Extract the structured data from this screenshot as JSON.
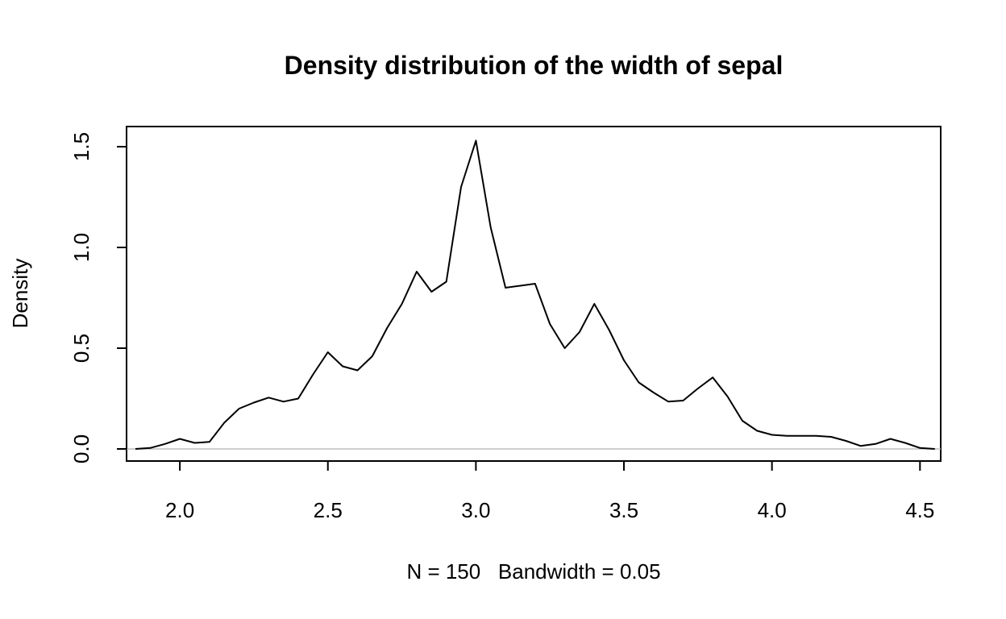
{
  "chart_data": {
    "type": "line",
    "title": "Density distribution of the width of sepal",
    "xlabel": "N = 150   Bandwidth = 0.05",
    "ylabel": "Density",
    "xlim": [
      1.82,
      4.57
    ],
    "ylim": [
      -0.06,
      1.6
    ],
    "x_ticks": [
      "2.0",
      "2.5",
      "3.0",
      "3.5",
      "4.0",
      "4.5"
    ],
    "y_ticks": [
      "0.0",
      "0.5",
      "1.0",
      "1.5"
    ],
    "x_tick_values": [
      2.0,
      2.5,
      3.0,
      3.5,
      4.0,
      4.5
    ],
    "y_tick_values": [
      0.0,
      0.5,
      1.0,
      1.5
    ],
    "baseline": 0,
    "grid": false,
    "line_color": "#000000",
    "baseline_color": "#bebebe",
    "series": [
      {
        "x": [
          1.85,
          1.9,
          1.95,
          2.0,
          2.05,
          2.1,
          2.15,
          2.2,
          2.25,
          2.3,
          2.35,
          2.4,
          2.45,
          2.5,
          2.55,
          2.6,
          2.65,
          2.7,
          2.75,
          2.8,
          2.85,
          2.9,
          2.95,
          3.0,
          3.05,
          3.1,
          3.15,
          3.2,
          3.25,
          3.3,
          3.35,
          3.4,
          3.45,
          3.5,
          3.55,
          3.6,
          3.65,
          3.7,
          3.75,
          3.8,
          3.85,
          3.9,
          3.95,
          4.0,
          4.05,
          4.1,
          4.15,
          4.2,
          4.25,
          4.3,
          4.35,
          4.4,
          4.45,
          4.5,
          4.55
        ],
        "y": [
          0.0,
          0.005,
          0.025,
          0.05,
          0.03,
          0.035,
          0.13,
          0.2,
          0.23,
          0.255,
          0.235,
          0.25,
          0.37,
          0.48,
          0.41,
          0.39,
          0.46,
          0.6,
          0.72,
          0.88,
          0.78,
          0.83,
          1.3,
          1.53,
          1.1,
          0.8,
          0.81,
          0.82,
          0.62,
          0.5,
          0.58,
          0.72,
          0.59,
          0.44,
          0.33,
          0.28,
          0.235,
          0.24,
          0.3,
          0.355,
          0.26,
          0.14,
          0.09,
          0.07,
          0.065,
          0.065,
          0.065,
          0.06,
          0.04,
          0.015,
          0.025,
          0.05,
          0.03,
          0.005,
          0.0
        ]
      }
    ]
  }
}
